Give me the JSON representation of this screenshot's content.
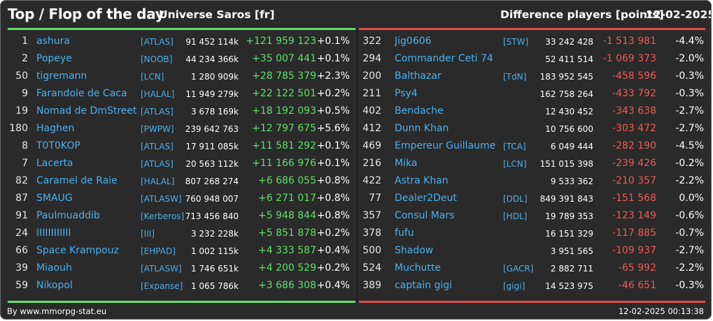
{
  "header": {
    "title": "Top / Flop of the day",
    "universe": "Universe Saros [fr]",
    "metric": "Difference players [points]",
    "date": "12-02-2025"
  },
  "colors": {
    "background": "#2a2a2a",
    "top_accent": "#5fe06a",
    "flop_accent": "#e0504a",
    "name_color": "#4ab0f0"
  },
  "top": [
    {
      "rank": "1",
      "name": "ashura",
      "alliance": "[ATLAS]",
      "points": "91 452 114k",
      "diff": "+121 959 123",
      "pct": "+0.1%"
    },
    {
      "rank": "2",
      "name": "Popeye",
      "alliance": "[NOOB]",
      "points": "44 234 366k",
      "diff": "+35 007 441",
      "pct": "+0.1%"
    },
    {
      "rank": "50",
      "name": "tigremann",
      "alliance": "[LCN]",
      "points": "1 280 909k",
      "diff": "+28 785 379",
      "pct": "+2.3%"
    },
    {
      "rank": "9",
      "name": "Farandole de Caca",
      "alliance": "[HALAL]",
      "points": "11 949 279k",
      "diff": "+22 122 501",
      "pct": "+0.2%"
    },
    {
      "rank": "19",
      "name": "Nomad de DmStreet",
      "alliance": "[ATLAS]",
      "points": "3 678 169k",
      "diff": "+18 192 093",
      "pct": "+0.5%"
    },
    {
      "rank": "180",
      "name": "Haghen",
      "alliance": "[PWPW]",
      "points": "239 642 763",
      "diff": "+12 797 675",
      "pct": "+5.6%"
    },
    {
      "rank": "8",
      "name": "T0T0KOP",
      "alliance": "[ATLAS]",
      "points": "17 911 085k",
      "diff": "+11 581 292",
      "pct": "+0.1%"
    },
    {
      "rank": "7",
      "name": "Lacerta",
      "alliance": "[ATLAS]",
      "points": "20 563 112k",
      "diff": "+11 166 976",
      "pct": "+0.1%"
    },
    {
      "rank": "82",
      "name": "Caramel de Raie",
      "alliance": "[HALAL]",
      "points": "807 268 274",
      "diff": "+6 686 055",
      "pct": "+0.8%"
    },
    {
      "rank": "87",
      "name": "SMAUG",
      "alliance": "[ATLASW]",
      "points": "760 948 007",
      "diff": "+6 271 017",
      "pct": "+0.8%"
    },
    {
      "rank": "91",
      "name": "Paulmuaddib",
      "alliance": "[Kerberos]",
      "points": "713 456 840",
      "diff": "+5 948 844",
      "pct": "+0.8%"
    },
    {
      "rank": "24",
      "name": "IIIIIIIIIIII",
      "alliance": "[III]",
      "points": "3 232 228k",
      "diff": "+5 851 878",
      "pct": "+0.2%"
    },
    {
      "rank": "66",
      "name": "Space Krampouz",
      "alliance": "[EHPAD]",
      "points": "1 002 115k",
      "diff": "+4 333 587",
      "pct": "+0.4%"
    },
    {
      "rank": "39",
      "name": "Miaouh",
      "alliance": "[ATLASW]",
      "points": "1 746 651k",
      "diff": "+4 200 529",
      "pct": "+0.2%"
    },
    {
      "rank": "59",
      "name": "Nikopol",
      "alliance": "[Expanse]",
      "points": "1 065 786k",
      "diff": "+3 686 308",
      "pct": "+0.4%"
    }
  ],
  "flop": [
    {
      "rank": "322",
      "name": "Jig0606",
      "alliance": "[STW]",
      "points": "33 242 428",
      "diff": "-1 513 981",
      "pct": "-4.4%"
    },
    {
      "rank": "294",
      "name": "Commander Ceti 74",
      "alliance": "",
      "points": "52 411 514",
      "diff": "-1 069 373",
      "pct": "-2.0%"
    },
    {
      "rank": "200",
      "name": "Balthazar",
      "alliance": "[TdN]",
      "points": "183 952 545",
      "diff": "-458 596",
      "pct": "-0.3%"
    },
    {
      "rank": "211",
      "name": "Psy4",
      "alliance": "",
      "points": "162 758 264",
      "diff": "-433 792",
      "pct": "-0.3%"
    },
    {
      "rank": "402",
      "name": "Bendache",
      "alliance": "",
      "points": "12 430 452",
      "diff": "-343 638",
      "pct": "-2.7%"
    },
    {
      "rank": "412",
      "name": "Dunn Khan",
      "alliance": "",
      "points": "10 756 600",
      "diff": "-303 472",
      "pct": "-2.7%"
    },
    {
      "rank": "469",
      "name": "Empereur Guillaume",
      "alliance": "[TCA]",
      "points": "6 049 444",
      "diff": "-282 190",
      "pct": "-4.5%"
    },
    {
      "rank": "216",
      "name": "Mika",
      "alliance": "[LCN]",
      "points": "151 015 398",
      "diff": "-239 426",
      "pct": "-0.2%"
    },
    {
      "rank": "422",
      "name": "Astra Khan",
      "alliance": "",
      "points": "9 533 362",
      "diff": "-210 357",
      "pct": "-2.2%"
    },
    {
      "rank": "77",
      "name": "Dealer2Deut",
      "alliance": "[DDL]",
      "points": "849 391 843",
      "diff": "-151 568",
      "pct": "0.0%"
    },
    {
      "rank": "357",
      "name": "Consul Mars",
      "alliance": "[HDL]",
      "points": "19 789 353",
      "diff": "-123 149",
      "pct": "-0.6%"
    },
    {
      "rank": "378",
      "name": "fufu",
      "alliance": "",
      "points": "16 151 329",
      "diff": "-117 885",
      "pct": "-0.7%"
    },
    {
      "rank": "500",
      "name": "Shadow",
      "alliance": "",
      "points": "3 951 565",
      "diff": "-109 937",
      "pct": "-2.7%"
    },
    {
      "rank": "524",
      "name": "Muchutte",
      "alliance": "[GACR]",
      "points": "2 882 711",
      "diff": "-65 992",
      "pct": "-2.2%"
    },
    {
      "rank": "389",
      "name": "captain gigi",
      "alliance": "[gigi]",
      "points": "14 523 975",
      "diff": "-46 651",
      "pct": "-0.3%"
    }
  ],
  "footer": {
    "credit": "By www.mmorpg-stat.eu",
    "timestamp": "12-02-2025 00:13:38"
  }
}
